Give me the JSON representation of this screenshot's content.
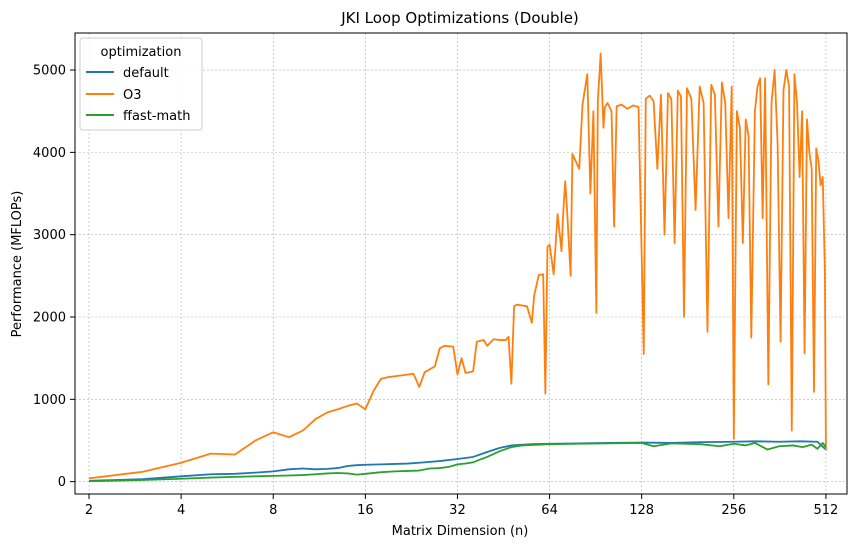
{
  "chart_data": {
    "type": "line",
    "title": "JKI Loop Optimizations (Double)",
    "xlabel": "Matrix Dimension (n)",
    "ylabel": "Performance (MFLOPs)",
    "xscale": "log2",
    "xlim": [
      1.8,
      600
    ],
    "ylim": [
      -150,
      5450
    ],
    "xticks": [
      2,
      4,
      8,
      16,
      32,
      64,
      128,
      256,
      512
    ],
    "xtick_labels": [
      "2",
      "4",
      "8",
      "16",
      "32",
      "64",
      "128",
      "256",
      "512"
    ],
    "yticks": [
      0,
      1000,
      2000,
      3000,
      4000,
      5000
    ],
    "ytick_labels": [
      "0",
      "1000",
      "2000",
      "3000",
      "4000",
      "5000"
    ],
    "grid": true,
    "legend": {
      "title": "optimization",
      "placement": "top-left"
    },
    "series": [
      {
        "name": "default",
        "color": "#1f77b4",
        "points": [
          [
            2,
            10
          ],
          [
            3,
            30
          ],
          [
            4,
            65
          ],
          [
            5,
            90
          ],
          [
            6,
            95
          ],
          [
            7,
            110
          ],
          [
            8,
            125
          ],
          [
            9,
            150
          ],
          [
            10,
            160
          ],
          [
            11,
            150
          ],
          [
            12,
            155
          ],
          [
            13,
            165
          ],
          [
            14,
            190
          ],
          [
            15,
            200
          ],
          [
            16,
            205
          ],
          [
            18,
            210
          ],
          [
            20,
            215
          ],
          [
            22,
            220
          ],
          [
            24,
            230
          ],
          [
            28,
            250
          ],
          [
            32,
            275
          ],
          [
            36,
            300
          ],
          [
            40,
            360
          ],
          [
            44,
            410
          ],
          [
            48,
            440
          ],
          [
            56,
            455
          ],
          [
            64,
            460
          ],
          [
            80,
            465
          ],
          [
            100,
            470
          ],
          [
            128,
            475
          ],
          [
            160,
            470
          ],
          [
            200,
            480
          ],
          [
            256,
            485
          ],
          [
            300,
            490
          ],
          [
            360,
            485
          ],
          [
            420,
            490
          ],
          [
            480,
            485
          ],
          [
            512,
            390
          ]
        ]
      },
      {
        "name": "O3",
        "color": "#ff7f0e",
        "points": [
          [
            2,
            40
          ],
          [
            3,
            120
          ],
          [
            4,
            230
          ],
          [
            5,
            340
          ],
          [
            6,
            330
          ],
          [
            7,
            500
          ],
          [
            8,
            600
          ],
          [
            9,
            540
          ],
          [
            10,
            620
          ],
          [
            11,
            760
          ],
          [
            12,
            840
          ],
          [
            13,
            880
          ],
          [
            14,
            920
          ],
          [
            15,
            950
          ],
          [
            16,
            880
          ],
          [
            17,
            1100
          ],
          [
            18,
            1250
          ],
          [
            19,
            1270
          ],
          [
            20,
            1280
          ],
          [
            22,
            1300
          ],
          [
            23,
            1310
          ],
          [
            24,
            1150
          ],
          [
            25,
            1330
          ],
          [
            27,
            1400
          ],
          [
            28,
            1620
          ],
          [
            29,
            1650
          ],
          [
            31,
            1640
          ],
          [
            32,
            1300
          ],
          [
            33,
            1500
          ],
          [
            34,
            1320
          ],
          [
            36,
            1340
          ],
          [
            37,
            1700
          ],
          [
            39,
            1720
          ],
          [
            40,
            1650
          ],
          [
            42,
            1730
          ],
          [
            44,
            1720
          ],
          [
            46,
            1720
          ],
          [
            47,
            1760
          ],
          [
            48,
            1190
          ],
          [
            49,
            2130
          ],
          [
            50,
            2150
          ],
          [
            54,
            2130
          ],
          [
            56,
            1930
          ],
          [
            57,
            2260
          ],
          [
            59,
            2510
          ],
          [
            61,
            2520
          ],
          [
            62,
            1070
          ],
          [
            63,
            2850
          ],
          [
            64,
            2880
          ],
          [
            66,
            2520
          ],
          [
            68,
            3250
          ],
          [
            70,
            2800
          ],
          [
            71,
            3300
          ],
          [
            72,
            3650
          ],
          [
            73,
            3300
          ],
          [
            75,
            2500
          ],
          [
            76,
            3980
          ],
          [
            80,
            3800
          ],
          [
            82,
            4580
          ],
          [
            85,
            4950
          ],
          [
            87,
            3500
          ],
          [
            89,
            4500
          ],
          [
            91,
            2050
          ],
          [
            92,
            4620
          ],
          [
            94,
            5200
          ],
          [
            96,
            4300
          ],
          [
            97,
            4550
          ],
          [
            99,
            4600
          ],
          [
            102,
            4500
          ],
          [
            104,
            3100
          ],
          [
            106,
            4560
          ],
          [
            110,
            4580
          ],
          [
            115,
            4530
          ],
          [
            120,
            4570
          ],
          [
            125,
            4550
          ],
          [
            130,
            1550
          ],
          [
            132,
            4650
          ],
          [
            136,
            4690
          ],
          [
            140,
            4620
          ],
          [
            144,
            3800
          ],
          [
            148,
            4700
          ],
          [
            152,
            3000
          ],
          [
            156,
            4720
          ],
          [
            160,
            4650
          ],
          [
            164,
            2900
          ],
          [
            168,
            4750
          ],
          [
            172,
            4680
          ],
          [
            176,
            2000
          ],
          [
            180,
            4780
          ],
          [
            186,
            4650
          ],
          [
            192,
            3300
          ],
          [
            198,
            4800
          ],
          [
            204,
            4600
          ],
          [
            210,
            1820
          ],
          [
            216,
            4820
          ],
          [
            222,
            4700
          ],
          [
            228,
            3100
          ],
          [
            234,
            4850
          ],
          [
            240,
            4600
          ],
          [
            246,
            3200
          ],
          [
            252,
            4800
          ],
          [
            256,
            520
          ],
          [
            262,
            4500
          ],
          [
            268,
            4300
          ],
          [
            274,
            2900
          ],
          [
            280,
            4400
          ],
          [
            286,
            4200
          ],
          [
            292,
            1750
          ],
          [
            300,
            4500
          ],
          [
            306,
            4800
          ],
          [
            312,
            4900
          ],
          [
            318,
            3200
          ],
          [
            324,
            4900
          ],
          [
            332,
            1180
          ],
          [
            340,
            4600
          ],
          [
            348,
            5000
          ],
          [
            356,
            4100
          ],
          [
            364,
            1700
          ],
          [
            372,
            4750
          ],
          [
            380,
            5000
          ],
          [
            388,
            4800
          ],
          [
            396,
            620
          ],
          [
            404,
            4950
          ],
          [
            412,
            4600
          ],
          [
            420,
            3700
          ],
          [
            428,
            4500
          ],
          [
            436,
            1560
          ],
          [
            444,
            4400
          ],
          [
            452,
            4000
          ],
          [
            460,
            3800
          ],
          [
            468,
            1090
          ],
          [
            476,
            4050
          ],
          [
            484,
            3900
          ],
          [
            492,
            3600
          ],
          [
            500,
            3700
          ],
          [
            508,
            2540
          ],
          [
            512,
            380
          ]
        ]
      },
      {
        "name": "ffast-math",
        "color": "#2ca02c",
        "points": [
          [
            2,
            5
          ],
          [
            3,
            20
          ],
          [
            4,
            35
          ],
          [
            5,
            50
          ],
          [
            6,
            58
          ],
          [
            7,
            65
          ],
          [
            8,
            70
          ],
          [
            9,
            75
          ],
          [
            10,
            80
          ],
          [
            11,
            90
          ],
          [
            12,
            100
          ],
          [
            13,
            105
          ],
          [
            14,
            100
          ],
          [
            15,
            85
          ],
          [
            16,
            95
          ],
          [
            18,
            115
          ],
          [
            20,
            125
          ],
          [
            22,
            130
          ],
          [
            24,
            135
          ],
          [
            26,
            160
          ],
          [
            28,
            165
          ],
          [
            30,
            180
          ],
          [
            32,
            210
          ],
          [
            34,
            220
          ],
          [
            36,
            235
          ],
          [
            38,
            270
          ],
          [
            40,
            300
          ],
          [
            44,
            370
          ],
          [
            48,
            420
          ],
          [
            52,
            440
          ],
          [
            56,
            445
          ],
          [
            64,
            455
          ],
          [
            80,
            460
          ],
          [
            100,
            465
          ],
          [
            128,
            470
          ],
          [
            140,
            430
          ],
          [
            160,
            465
          ],
          [
            200,
            455
          ],
          [
            230,
            430
          ],
          [
            256,
            460
          ],
          [
            280,
            440
          ],
          [
            300,
            470
          ],
          [
            330,
            390
          ],
          [
            360,
            430
          ],
          [
            400,
            440
          ],
          [
            430,
            420
          ],
          [
            460,
            450
          ],
          [
            480,
            400
          ],
          [
            500,
            470
          ],
          [
            512,
            420
          ]
        ]
      }
    ]
  }
}
